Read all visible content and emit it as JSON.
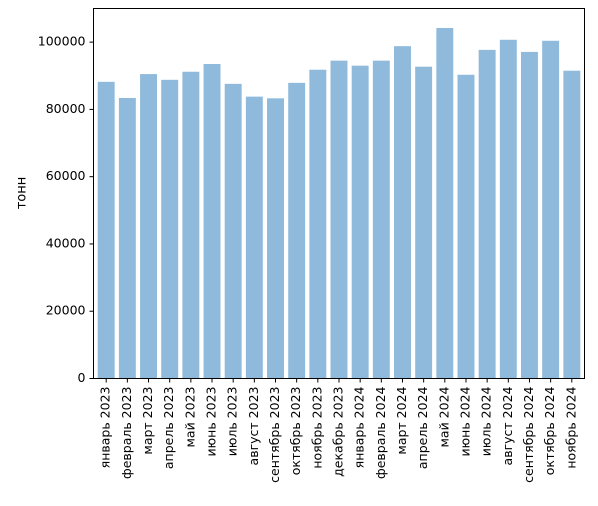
{
  "chart_data": {
    "type": "bar",
    "title": "",
    "xlabel": "",
    "ylabel": "тонн",
    "ylim": [
      0,
      110000
    ],
    "yticks": [
      0,
      20000,
      40000,
      60000,
      80000,
      100000
    ],
    "ytick_labels": [
      "0",
      "20000",
      "40000",
      "60000",
      "80000",
      "100000"
    ],
    "grid": false,
    "legend": "none",
    "bar_color": "#8fbadb",
    "categories": [
      "январь 2023",
      "февраль 2023",
      "март 2023",
      "апрель 2023",
      "май 2023",
      "июнь 2023",
      "июль 2023",
      "август 2023",
      "сентябрь 2023",
      "октябрь 2023",
      "ноябрь 2023",
      "декабрь 2023",
      "январь 2024",
      "февраль 2024",
      "март 2024",
      "апрель 2024",
      "май 2024",
      "июнь 2024",
      "июль 2024",
      "август 2024",
      "сентябрь 2024",
      "октябрь 2024",
      "ноябрь 2024"
    ],
    "values": [
      88200,
      83400,
      90500,
      88800,
      91200,
      93500,
      87600,
      83800,
      83300,
      87900,
      91800,
      94500,
      93000,
      94500,
      98800,
      92700,
      104200,
      90300,
      97700,
      100700,
      97100,
      100400,
      91500
    ]
  }
}
